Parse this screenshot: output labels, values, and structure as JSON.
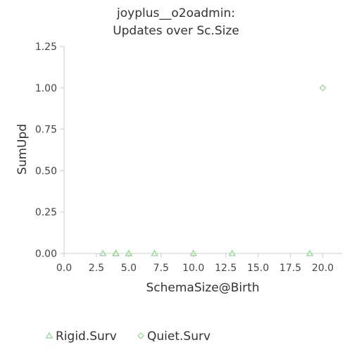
{
  "chart_data": {
    "type": "scatter",
    "title": [
      "joyplus__o2oadmin:",
      "Updates over Sc.Size"
    ],
    "xlabel": "SchemaSize@Birth",
    "ylabel": "SumUpd",
    "xlim": [
      0,
      21.5
    ],
    "ylim": [
      0,
      1.25
    ],
    "x_ticks": [
      {
        "value": 0,
        "label": "0.0"
      },
      {
        "value": 2.5,
        "label": "2.5"
      },
      {
        "value": 5,
        "label": "5.0"
      },
      {
        "value": 7.5,
        "label": "7.5"
      },
      {
        "value": 10,
        "label": "10.0"
      },
      {
        "value": 12.5,
        "label": "12.5"
      },
      {
        "value": 15,
        "label": "15.0"
      },
      {
        "value": 17.5,
        "label": "17.5"
      },
      {
        "value": 20,
        "label": "20.0"
      }
    ],
    "y_ticks": [
      {
        "value": 0,
        "label": "0.00"
      },
      {
        "value": 0.25,
        "label": "0.25"
      },
      {
        "value": 0.5,
        "label": "0.50"
      },
      {
        "value": 0.75,
        "label": "0.75"
      },
      {
        "value": 1,
        "label": "1.00"
      },
      {
        "value": 1.25,
        "label": "1.25"
      }
    ],
    "grid": false,
    "legend_position": "bottom-left",
    "series": [
      {
        "name": "Rigid.Surv",
        "marker": "triangle",
        "color": "#8fd68f",
        "points": [
          [
            3,
            0
          ],
          [
            4,
            0
          ],
          [
            4,
            0
          ],
          [
            4,
            0
          ],
          [
            5,
            0
          ],
          [
            5,
            0
          ],
          [
            7,
            0
          ],
          [
            10,
            0
          ],
          [
            13,
            0
          ],
          [
            19,
            0
          ]
        ]
      },
      {
        "name": "Quiet.Surv",
        "marker": "diamond",
        "color": "#8fd68f",
        "points": [
          [
            20,
            1
          ]
        ]
      }
    ]
  }
}
